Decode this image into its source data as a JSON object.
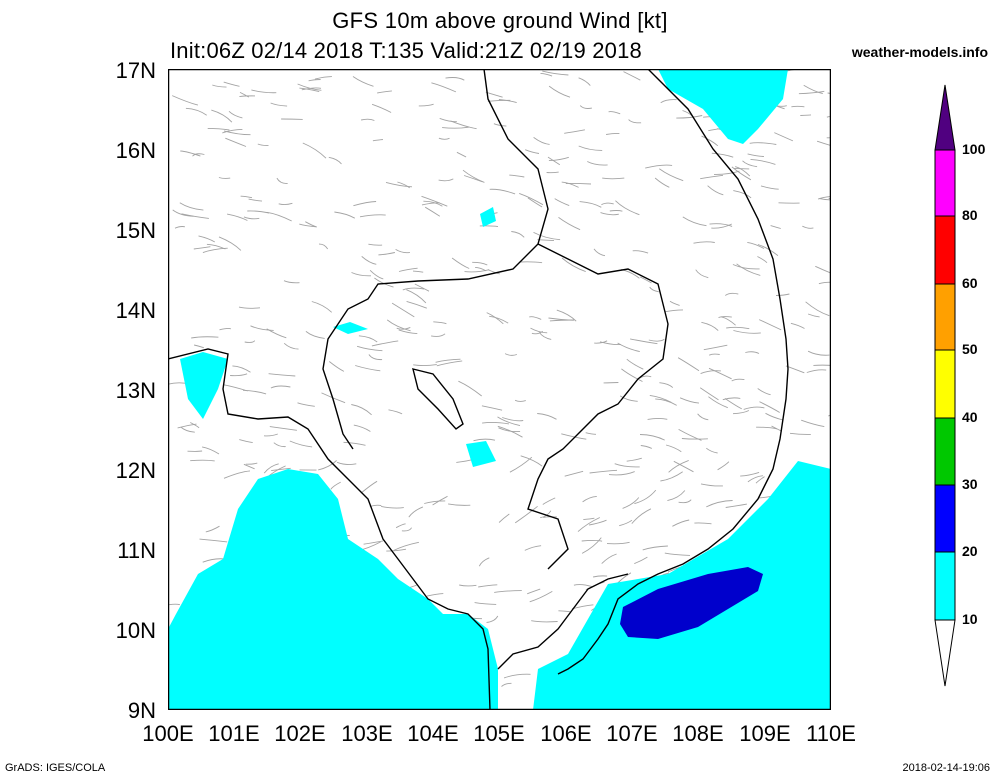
{
  "title": {
    "line1": "GFS 10m above ground Wind [kt]",
    "line2": "Init:06Z 02/14 2018 T:135 Valid:21Z 02/19 2018",
    "site": "weather-models.info"
  },
  "axes": {
    "lat_labels": [
      "17N",
      "16N",
      "15N",
      "14N",
      "13N",
      "12N",
      "11N",
      "10N",
      "9N"
    ],
    "lon_labels": [
      "100E",
      "101E",
      "102E",
      "103E",
      "104E",
      "105E",
      "106E",
      "107E",
      "108E",
      "109E",
      "110E"
    ],
    "lat_range": [
      9,
      17
    ],
    "lon_range": [
      100,
      110
    ]
  },
  "colorbar": {
    "levels": [
      "10",
      "20",
      "30",
      "40",
      "50",
      "60",
      "80",
      "100"
    ],
    "colors": [
      "#00ffff",
      "#0000ff",
      "#00c800",
      "#ffff00",
      "#ffa000",
      "#ff0000",
      "#ff00ff",
      "#500080"
    ]
  },
  "footer": {
    "left": "GrADS: IGES/COLA",
    "right": "2018-02-14-19:06"
  }
}
